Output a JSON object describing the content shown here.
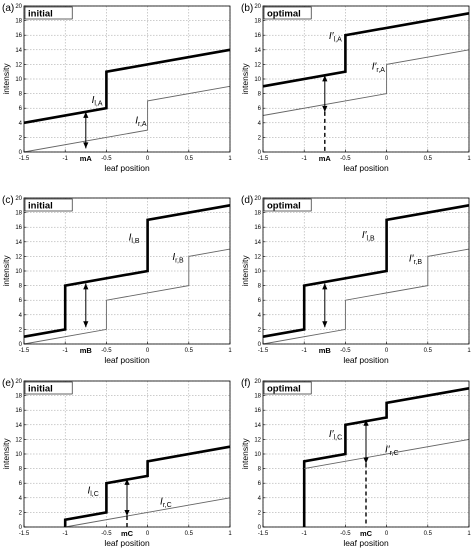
{
  "chart_data": [
    {
      "panel_label": "(a)",
      "tag": "initial",
      "type": "line",
      "xlabel": "leaf position",
      "ylabel": "intensity",
      "xlim": [
        -1.5,
        1
      ],
      "ylim": [
        0,
        20
      ],
      "xticks": [
        "-1.5",
        "-1",
        "-0.5",
        "0",
        "0.5",
        "1"
      ],
      "yticks": [
        "0",
        "2",
        "4",
        "6",
        "8",
        "10",
        "12",
        "14",
        "16",
        "18",
        "20"
      ],
      "grid": true,
      "series": [
        {
          "name": "I_l,A",
          "weight": "thick",
          "points": [
            [
              -1.5,
              4
            ],
            [
              -0.5,
              6
            ],
            [
              -0.5,
              11
            ],
            [
              1,
              14
            ]
          ]
        },
        {
          "name": "I_r,A",
          "weight": "thin",
          "points": [
            [
              -1.5,
              0
            ],
            [
              0,
              3
            ],
            [
              0,
              7
            ],
            [
              1,
              9
            ]
          ]
        }
      ],
      "labels": [
        {
          "main": "I",
          "sub": "l,A",
          "prime": false,
          "x": -0.68,
          "y": 6.7
        },
        {
          "main": "I",
          "sub": "r,A",
          "prime": false,
          "x": -0.15,
          "y": 3.9
        }
      ],
      "marker": {
        "label": "mA",
        "x": -0.75,
        "y_low": 0,
        "y_bottom": 0.5,
        "y_top": 5.5,
        "dashed": false
      }
    },
    {
      "panel_label": "(b)",
      "tag": "optimal",
      "type": "line",
      "xlabel": "leaf position",
      "ylabel": "intensity",
      "xlim": [
        -1.5,
        1
      ],
      "ylim": [
        0,
        20
      ],
      "xticks": [
        "-1.5",
        "-1",
        "-0.5",
        "0",
        "0.5",
        "1"
      ],
      "yticks": [
        "0",
        "2",
        "4",
        "6",
        "8",
        "10",
        "12",
        "14",
        "16",
        "18",
        "20"
      ],
      "grid": true,
      "series": [
        {
          "name": "I'_l,A",
          "weight": "thick",
          "points": [
            [
              -1.5,
              9
            ],
            [
              -0.5,
              11
            ],
            [
              -0.5,
              16
            ],
            [
              1,
              19
            ]
          ]
        },
        {
          "name": "I'_r,A",
          "weight": "thin",
          "points": [
            [
              -1.5,
              5
            ],
            [
              0,
              8
            ],
            [
              0,
              12
            ],
            [
              1,
              14
            ]
          ]
        }
      ],
      "labels": [
        {
          "main": "I",
          "sub": "l,A",
          "prime": true,
          "x": -0.7,
          "y": 15.5
        },
        {
          "main": "I",
          "sub": "r,A",
          "prime": true,
          "x": -0.18,
          "y": 11.3
        }
      ],
      "marker": {
        "label": "mA",
        "x": -0.75,
        "y_low": 0,
        "y_bottom": 5.5,
        "y_top": 10.5,
        "dashed": true
      }
    },
    {
      "panel_label": "(c)",
      "tag": "initial",
      "type": "line",
      "xlabel": "leaf position",
      "ylabel": "intensity",
      "xlim": [
        -1.5,
        1
      ],
      "ylim": [
        0,
        20
      ],
      "xticks": [
        "-1.5",
        "-1",
        "-0.5",
        "0",
        "0.5",
        "1"
      ],
      "yticks": [
        "0",
        "2",
        "4",
        "6",
        "8",
        "10",
        "12",
        "14",
        "16",
        "18",
        "20"
      ],
      "grid": true,
      "series": [
        {
          "name": "I_l,B",
          "weight": "thick",
          "points": [
            [
              -1.5,
              1
            ],
            [
              -1,
              2
            ],
            [
              -1,
              8
            ],
            [
              0,
              10
            ],
            [
              0,
              17
            ],
            [
              1,
              19
            ]
          ]
        },
        {
          "name": "I_r,B",
          "weight": "thin",
          "points": [
            [
              -1.5,
              0
            ],
            [
              -0.5,
              2
            ],
            [
              -0.5,
              6
            ],
            [
              0.5,
              8
            ],
            [
              0.5,
              12
            ],
            [
              1,
              13
            ]
          ]
        }
      ],
      "labels": [
        {
          "main": "I",
          "sub": "l,B",
          "prime": false,
          "x": -0.23,
          "y": 14.2
        },
        {
          "main": "I",
          "sub": "r,B",
          "prime": false,
          "x": 0.3,
          "y": 11.5
        }
      ],
      "marker": {
        "label": "mB",
        "x": -0.75,
        "y_low": 0,
        "y_bottom": 2.3,
        "y_top": 8.3,
        "dashed": false
      }
    },
    {
      "panel_label": "(d)",
      "tag": "optimal",
      "type": "line",
      "xlabel": "leaf position",
      "ylabel": "intensity",
      "xlim": [
        -1.5,
        1
      ],
      "ylim": [
        0,
        20
      ],
      "xticks": [
        "-1.5",
        "-1",
        "-0.5",
        "0",
        "0.5",
        "1"
      ],
      "yticks": [
        "0",
        "2",
        "4",
        "6",
        "8",
        "10",
        "12",
        "14",
        "16",
        "18",
        "20"
      ],
      "grid": true,
      "series": [
        {
          "name": "I'_l,B",
          "weight": "thick",
          "points": [
            [
              -1.5,
              1
            ],
            [
              -1,
              2
            ],
            [
              -1,
              8
            ],
            [
              0,
              10
            ],
            [
              0,
              17
            ],
            [
              1,
              19
            ]
          ]
        },
        {
          "name": "I'_r,B",
          "weight": "thin",
          "points": [
            [
              -1.5,
              0
            ],
            [
              -0.5,
              2
            ],
            [
              -0.5,
              6
            ],
            [
              0.5,
              8
            ],
            [
              0.5,
              12
            ],
            [
              1,
              13
            ]
          ]
        }
      ],
      "labels": [
        {
          "main": "I",
          "sub": "l,B",
          "prime": true,
          "x": -0.3,
          "y": 14.5
        },
        {
          "main": "I",
          "sub": "r,B",
          "prime": true,
          "x": 0.27,
          "y": 11.3
        }
      ],
      "marker": {
        "label": "mB",
        "x": -0.75,
        "y_low": 0,
        "y_bottom": 2.3,
        "y_top": 8.3,
        "dashed": false
      }
    },
    {
      "panel_label": "(e)",
      "tag": "initial",
      "type": "line",
      "xlabel": "leaf position",
      "ylabel": "intensity",
      "xlim": [
        -1.5,
        1
      ],
      "ylim": [
        0,
        20
      ],
      "xticks": [
        "-1.5",
        "-1",
        "-0.5",
        "0",
        "0.5",
        "1"
      ],
      "yticks": [
        "0",
        "2",
        "4",
        "6",
        "8",
        "10",
        "12",
        "14",
        "16",
        "18",
        "20"
      ],
      "grid": true,
      "series": [
        {
          "name": "I_l,C",
          "weight": "thick",
          "points": [
            [
              -1,
              0
            ],
            [
              -1,
              1
            ],
            [
              -0.5,
              2
            ],
            [
              -0.5,
              6
            ],
            [
              0,
              7
            ],
            [
              0,
              9
            ],
            [
              1,
              11
            ]
          ]
        },
        {
          "name": "I_r,C",
          "weight": "thin",
          "points": [
            [
              -1,
              0
            ],
            [
              1,
              4
            ]
          ]
        }
      ],
      "labels": [
        {
          "main": "I",
          "sub": "l,C",
          "prime": false,
          "x": -0.73,
          "y": 4.6
        },
        {
          "main": "I",
          "sub": "r,C",
          "prime": false,
          "x": 0.15,
          "y": 3.1
        }
      ],
      "marker": {
        "label": "mC",
        "x": -0.25,
        "y_low": 0,
        "y_bottom": 1.5,
        "y_top": 6.6,
        "dashed": true
      }
    },
    {
      "panel_label": "(f)",
      "tag": "optimal",
      "type": "line",
      "xlabel": "leaf position",
      "ylabel": "intensity",
      "xlim": [
        -1.5,
        1
      ],
      "ylim": [
        0,
        20
      ],
      "xticks": [
        "-1.5",
        "-1",
        "-0.5",
        "0",
        "0.5",
        "1"
      ],
      "yticks": [
        "0",
        "2",
        "4",
        "6",
        "8",
        "10",
        "12",
        "14",
        "16",
        "18",
        "20"
      ],
      "grid": true,
      "series": [
        {
          "name": "I'_l,C",
          "weight": "thick",
          "points": [
            [
              -1,
              0
            ],
            [
              -1,
              9
            ],
            [
              -0.5,
              10
            ],
            [
              -0.5,
              14
            ],
            [
              0,
              15
            ],
            [
              0,
              17
            ],
            [
              1,
              19
            ]
          ]
        },
        {
          "name": "I'_r,C",
          "weight": "thin",
          "points": [
            [
              -1,
              8
            ],
            [
              1,
              12
            ]
          ]
        }
      ],
      "labels": [
        {
          "main": "I",
          "sub": "l,C",
          "prime": true,
          "x": -0.7,
          "y": 12.3
        },
        {
          "main": "I",
          "sub": "r,C",
          "prime": true,
          "x": -0.02,
          "y": 10.2
        }
      ],
      "marker": {
        "label": "mC",
        "x": -0.25,
        "y_low": 0,
        "y_bottom": 8.7,
        "y_top": 14.7,
        "dashed": true
      }
    }
  ]
}
